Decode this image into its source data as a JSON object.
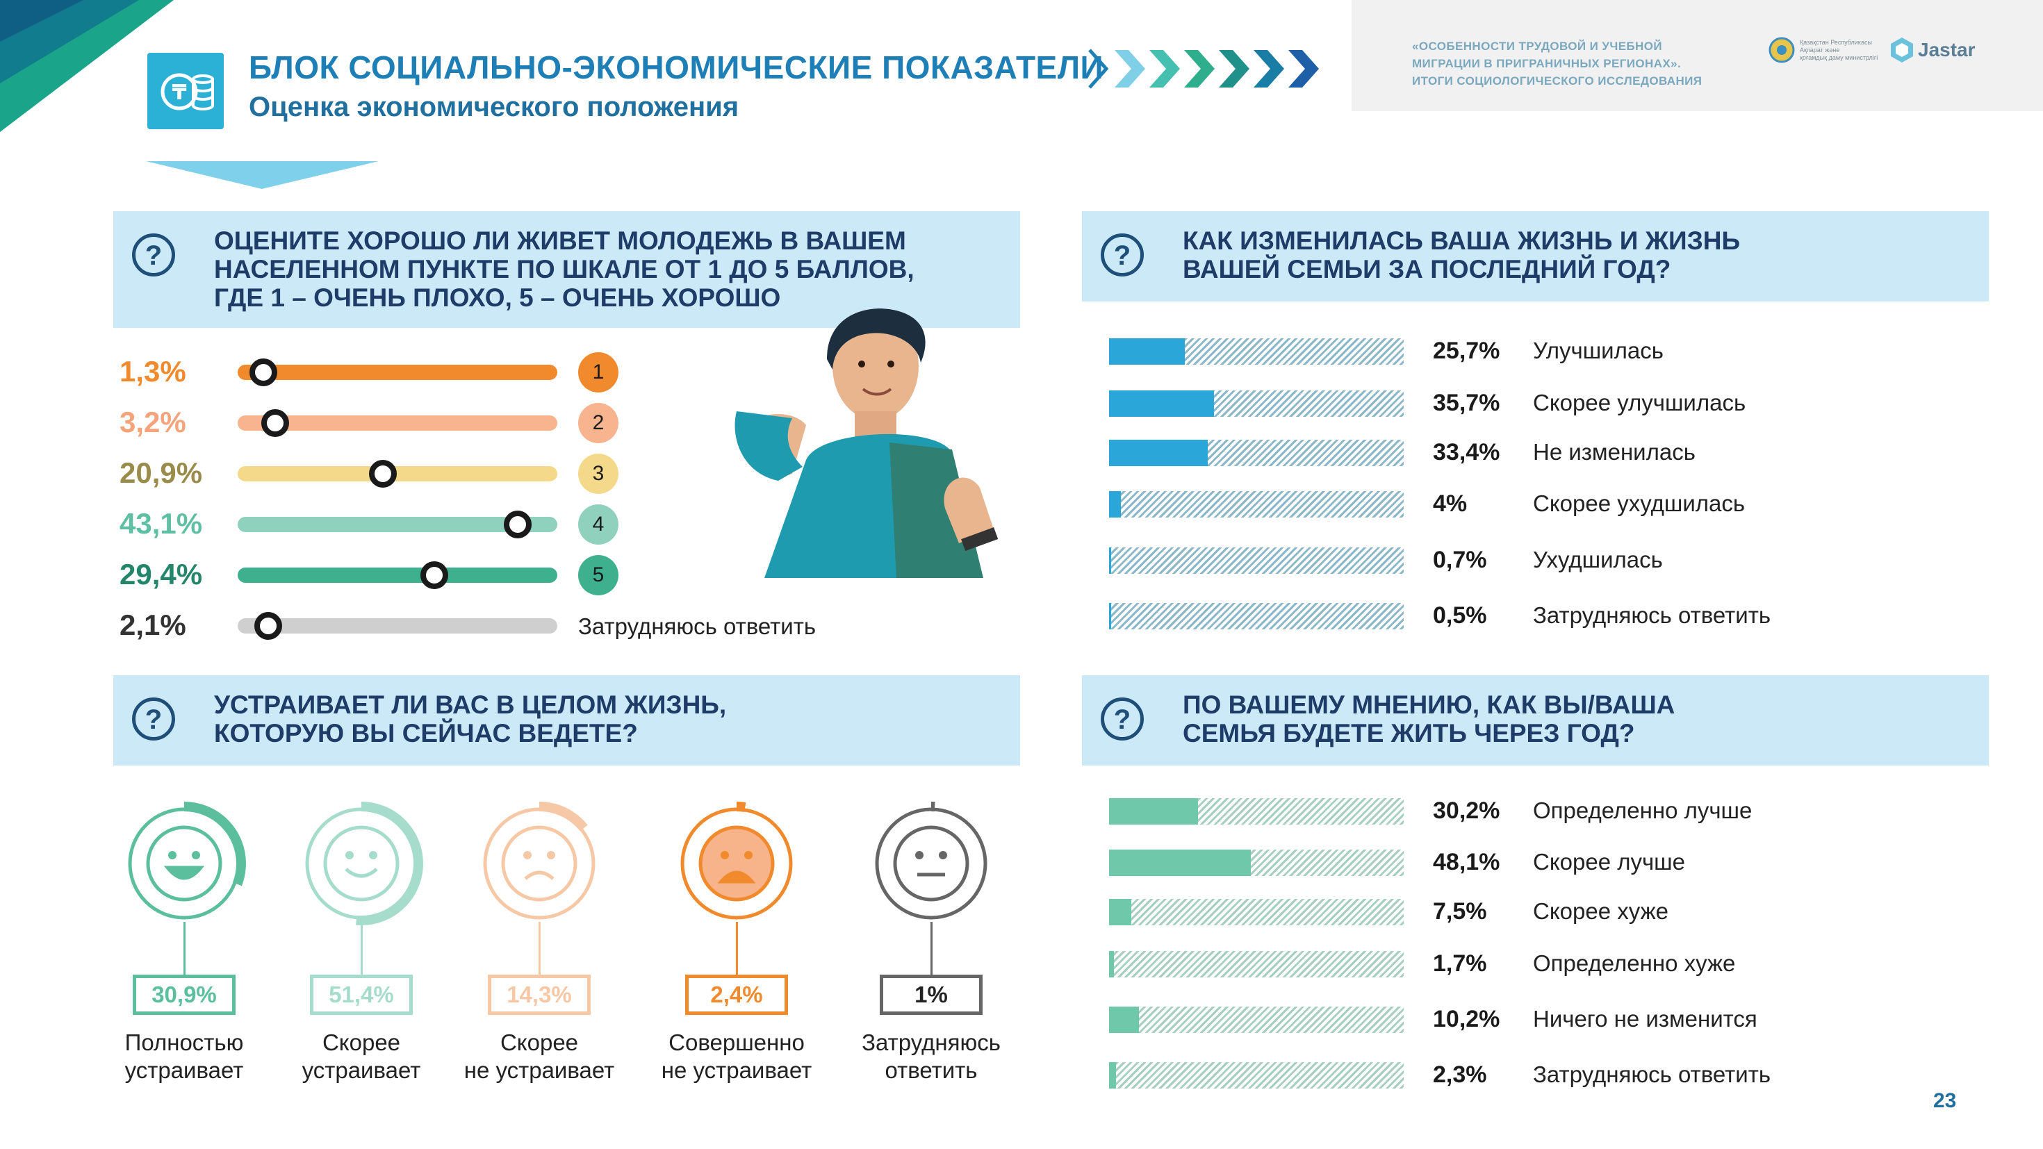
{
  "header": {
    "title": "БЛОК СОЦИАЛЬНО-ЭКОНОМИЧЕСКИЕ ПОКАЗАТЕЛИ",
    "subtitle": "Оценка экономического положения",
    "icon": "coins-icon",
    "report_lines": [
      "«ОСОБЕННОСТИ ТРУДОВОЙ И УЧЕБНОЙ",
      "МИГРАЦИИ В ПРИГРАНИЧНЫХ РЕГИОНАХ».",
      "ИТОГИ СОЦИОЛОГИЧЕСКОГО ИССЛЕДОВАНИЯ"
    ],
    "partner_lines": [
      "Қазақстан Республикасы",
      "Ақпарат және",
      "қоғамдық даму министрлігі"
    ],
    "brand": "Jastar"
  },
  "colors": {
    "accent_blue": "#1d7fb5",
    "panel_bg": "#cbe9f7",
    "bar_blue": "#2aa7d8",
    "bar_teal": "#6fc8a9",
    "hatch": "#9ec7d4"
  },
  "page_number": "23",
  "chart_data": [
    {
      "type": "bar",
      "question": "ОЦЕНИТЕ ХОРОШО ЛИ ЖИВЕТ МОЛОДЕЖЬ В ВАШЕМ НАСЕЛЕННОМ ПУНКТЕ ПО ШКАЛЕ ОТ 1 ДО 5 БАЛЛОВ, ГДЕ 1 – ОЧЕНЬ ПЛОХО, 5 – ОЧЕНЬ ХОРОШО",
      "question_lines": [
        "ОЦЕНИТЕ ХОРОШО ЛИ ЖИВЕТ МОЛОДЕЖЬ В ВАШЕМ",
        "НАСЕЛЕННОМ ПУНКТЕ ПО ШКАЛЕ ОТ 1 ДО 5 БАЛЛОВ,",
        "ГДЕ 1 – ОЧЕНЬ ПЛОХО, 5 – ОЧЕНЬ ХОРОШО"
      ],
      "categories": [
        "1",
        "2",
        "3",
        "4",
        "5",
        "Затрудняюсь ответить"
      ],
      "values": [
        1.3,
        3.2,
        20.9,
        43.1,
        29.4,
        2.1
      ],
      "labels": [
        "1,3%",
        "3,2%",
        "20,9%",
        "43,1%",
        "29,4%",
        "2,1%"
      ],
      "colors": [
        "#f08a2c",
        "#f7b48e",
        "#f5d98b",
        "#8fd1bd",
        "#3fb08e",
        "#cfcfcf"
      ],
      "label_colors": [
        "#f08a2c",
        "#f4a37a",
        "#9a8c4a",
        "#5fbfa2",
        "#23856a",
        "#333333"
      ]
    },
    {
      "type": "bar",
      "question": "КАК ИЗМЕНИЛАСЬ ВАША ЖИЗНЬ И ЖИЗНЬ ВАШЕЙ СЕМЬИ ЗА ПОСЛЕДНИЙ ГОД?",
      "question_lines": [
        "КАК ИЗМЕНИЛАСЬ ВАША ЖИЗНЬ И ЖИЗНЬ",
        "ВАШЕЙ СЕМЬИ ЗА ПОСЛЕДНИЙ ГОД?"
      ],
      "categories": [
        "Улучшилась",
        "Скорее улучшилась",
        "Не изменилась",
        "Скорее ухудшилась",
        "Ухудшилась",
        "Затрудняюсь ответить"
      ],
      "values": [
        25.7,
        35.7,
        33.4,
        4,
        0.7,
        0.5
      ],
      "labels": [
        "25,7%",
        "35,7%",
        "33,4%",
        "4%",
        "0,7%",
        "0,5%"
      ],
      "xlim": [
        0,
        100
      ]
    },
    {
      "type": "bar",
      "question": "УСТРАИВАЕТ ЛИ ВАС В ЦЕЛОМ ЖИЗНЬ, КОТОРУЮ ВЫ СЕЙЧАС ВЕДЕТЕ?",
      "question_lines": [
        "УСТРАИВАЕТ ЛИ ВАС В ЦЕЛОМ ЖИЗНЬ,",
        "КОТОРУЮ ВЫ СЕЙЧАС ВЕДЕТЕ?"
      ],
      "categories": [
        "Полностью устраивает",
        "Скорее устраивает",
        "Скорее не устраивает",
        "Совершенно не устраивает",
        "Затрудняюсь ответить"
      ],
      "category_lines": [
        [
          "Полностью",
          "устраивает"
        ],
        [
          "Скорее",
          "устраивает"
        ],
        [
          "Скорее",
          "не устраивает"
        ],
        [
          "Совершенно",
          "не устраивает"
        ],
        [
          "Затрудняюсь",
          "ответить"
        ]
      ],
      "values": [
        30.9,
        51.4,
        14.3,
        2.4,
        1
      ],
      "labels": [
        "30,9%",
        "51,4%",
        "14,3%",
        "2,4%",
        "1%"
      ],
      "colors": [
        "#5bbf9d",
        "#a6dccb",
        "#f7c8a6",
        "#f08a2c",
        "#666666"
      ],
      "icons": [
        "laughing-face-icon",
        "smiling-face-icon",
        "frowning-face-icon",
        "angry-face-icon",
        "neutral-face-icon"
      ]
    },
    {
      "type": "bar",
      "question": "ПО ВАШЕМУ МНЕНИЮ, КАК ВЫ/ВАША СЕМЬЯ БУДЕТЕ ЖИТЬ ЧЕРЕЗ ГОД?",
      "question_lines": [
        "ПО ВАШЕМУ МНЕНИЮ, КАК ВЫ/ВАША",
        "СЕМЬЯ БУДЕТЕ ЖИТЬ ЧЕРЕЗ ГОД?"
      ],
      "categories": [
        "Определенно лучше",
        "Скорее лучше",
        "Скорее хуже",
        "Определенно хуже",
        "Ничего не изменится",
        "Затрудняюсь ответить"
      ],
      "values": [
        30.2,
        48.1,
        7.5,
        1.7,
        10.2,
        2.3
      ],
      "labels": [
        "30,2%",
        "48,1%",
        "7,5%",
        "1,7%",
        "10,2%",
        "2,3%"
      ],
      "xlim": [
        0,
        100
      ]
    }
  ]
}
